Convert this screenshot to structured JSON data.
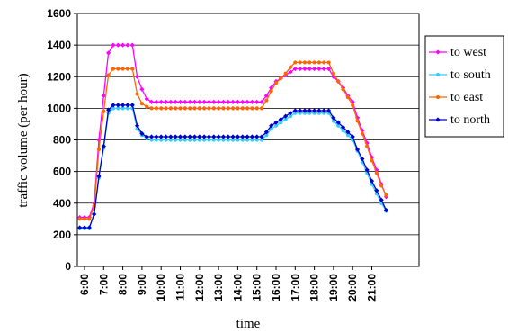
{
  "chart_data": {
    "type": "line",
    "xlabel": "time",
    "ylabel": "traffic volume  (per hour)",
    "ylim": [
      0,
      1600
    ],
    "yticks": [
      0,
      200,
      400,
      600,
      800,
      1000,
      1200,
      1400,
      1600
    ],
    "grid": "horizontal",
    "legend": "right",
    "x_tick_labels": [
      "6:00",
      "7:00",
      "8:00",
      "9:00",
      "10:00",
      "11:00",
      "12:00",
      "13:00",
      "14:00",
      "15:00",
      "16:00",
      "17:00",
      "18:00",
      "19:00",
      "20:00",
      "21:00"
    ],
    "x_ticks_hours": [
      6,
      7,
      8,
      9,
      10,
      11,
      12,
      13,
      14,
      15,
      16,
      17,
      18,
      19,
      20,
      21
    ],
    "series": [
      {
        "name": "to west",
        "color": "#ff00ff",
        "marker": "diamond",
        "x": [
          "5:45",
          "6:15",
          "6:30",
          "6:45",
          "7:00",
          "7:15",
          "7:30",
          "7:45",
          "8:00",
          "8:15",
          "8:30",
          "8:45",
          "9:00",
          "9:15",
          "9:30",
          "15:15",
          "15:30",
          "15:45",
          "16:00",
          "16:15",
          "16:30",
          "16:45",
          "17:00",
          "18:45",
          "19:00",
          "19:15",
          "19:30",
          "19:45",
          "20:00",
          "20:15",
          "20:30",
          "20:45",
          "21:00",
          "21:15",
          "21:30",
          "21:45"
        ],
        "values": [
          310,
          310,
          400,
          800,
          1080,
          1350,
          1400,
          1400,
          1400,
          1400,
          1400,
          1200,
          1120,
          1060,
          1040,
          1040,
          1080,
          1130,
          1170,
          1190,
          1210,
          1230,
          1250,
          1250,
          1200,
          1170,
          1130,
          1080,
          1040,
          940,
          860,
          780,
          690,
          610,
          520,
          440
        ]
      },
      {
        "name": "to south",
        "color": "#33ccff",
        "marker": "circle",
        "x": [
          "5:45",
          "6:15",
          "6:30",
          "6:45",
          "7:00",
          "7:15",
          "7:30",
          "7:45",
          "8:00",
          "8:15",
          "8:30",
          "8:45",
          "9:00",
          "9:15",
          "9:30",
          "15:15",
          "15:30",
          "15:45",
          "16:00",
          "16:15",
          "16:30",
          "16:45",
          "17:00",
          "18:45",
          "19:00",
          "19:15",
          "19:30",
          "19:45",
          "20:00",
          "20:15",
          "20:30",
          "20:45",
          "21:00",
          "21:15",
          "21:30",
          "21:45"
        ],
        "values": [
          240,
          240,
          330,
          560,
          750,
          970,
          1000,
          1000,
          1000,
          1000,
          1000,
          870,
          830,
          810,
          800,
          800,
          830,
          870,
          890,
          910,
          930,
          950,
          970,
          970,
          920,
          890,
          860,
          830,
          800,
          730,
          660,
          590,
          520,
          460,
          400,
          350
        ]
      },
      {
        "name": "to east",
        "color": "#ff6600",
        "marker": "circle",
        "x": [
          "5:45",
          "6:15",
          "6:30",
          "6:45",
          "7:00",
          "7:15",
          "7:30",
          "7:45",
          "8:00",
          "8:15",
          "8:30",
          "8:45",
          "9:00",
          "9:15",
          "9:30",
          "15:15",
          "15:30",
          "15:45",
          "16:00",
          "16:15",
          "16:30",
          "16:45",
          "17:00",
          "18:45",
          "19:00",
          "19:15",
          "19:30",
          "19:45",
          "20:00",
          "20:15",
          "20:30",
          "20:45",
          "21:00",
          "21:15",
          "21:30",
          "21:45"
        ],
        "values": [
          300,
          300,
          380,
          740,
          980,
          1210,
          1250,
          1250,
          1250,
          1250,
          1250,
          1090,
          1030,
          1010,
          1000,
          1000,
          1050,
          1110,
          1160,
          1190,
          1220,
          1260,
          1290,
          1290,
          1220,
          1170,
          1120,
          1070,
          1020,
          920,
          840,
          760,
          670,
          590,
          510,
          450
        ]
      },
      {
        "name": "to north",
        "color": "#0000cc",
        "marker": "diamond",
        "x": [
          "5:45",
          "6:15",
          "6:30",
          "6:45",
          "7:00",
          "7:15",
          "7:30",
          "7:45",
          "8:00",
          "8:15",
          "8:30",
          "8:45",
          "9:00",
          "9:15",
          "9:30",
          "15:15",
          "15:30",
          "15:45",
          "16:00",
          "16:15",
          "16:30",
          "16:45",
          "17:00",
          "18:45",
          "19:00",
          "19:15",
          "19:30",
          "19:45",
          "20:00",
          "20:15",
          "20:30",
          "20:45",
          "21:00",
          "21:15",
          "21:30",
          "21:45"
        ],
        "values": [
          245,
          245,
          330,
          570,
          760,
          990,
          1020,
          1020,
          1020,
          1020,
          1020,
          890,
          840,
          820,
          820,
          820,
          850,
          890,
          910,
          930,
          950,
          970,
          985,
          985,
          940,
          910,
          880,
          850,
          820,
          740,
          680,
          610,
          540,
          480,
          420,
          355
        ]
      }
    ]
  }
}
